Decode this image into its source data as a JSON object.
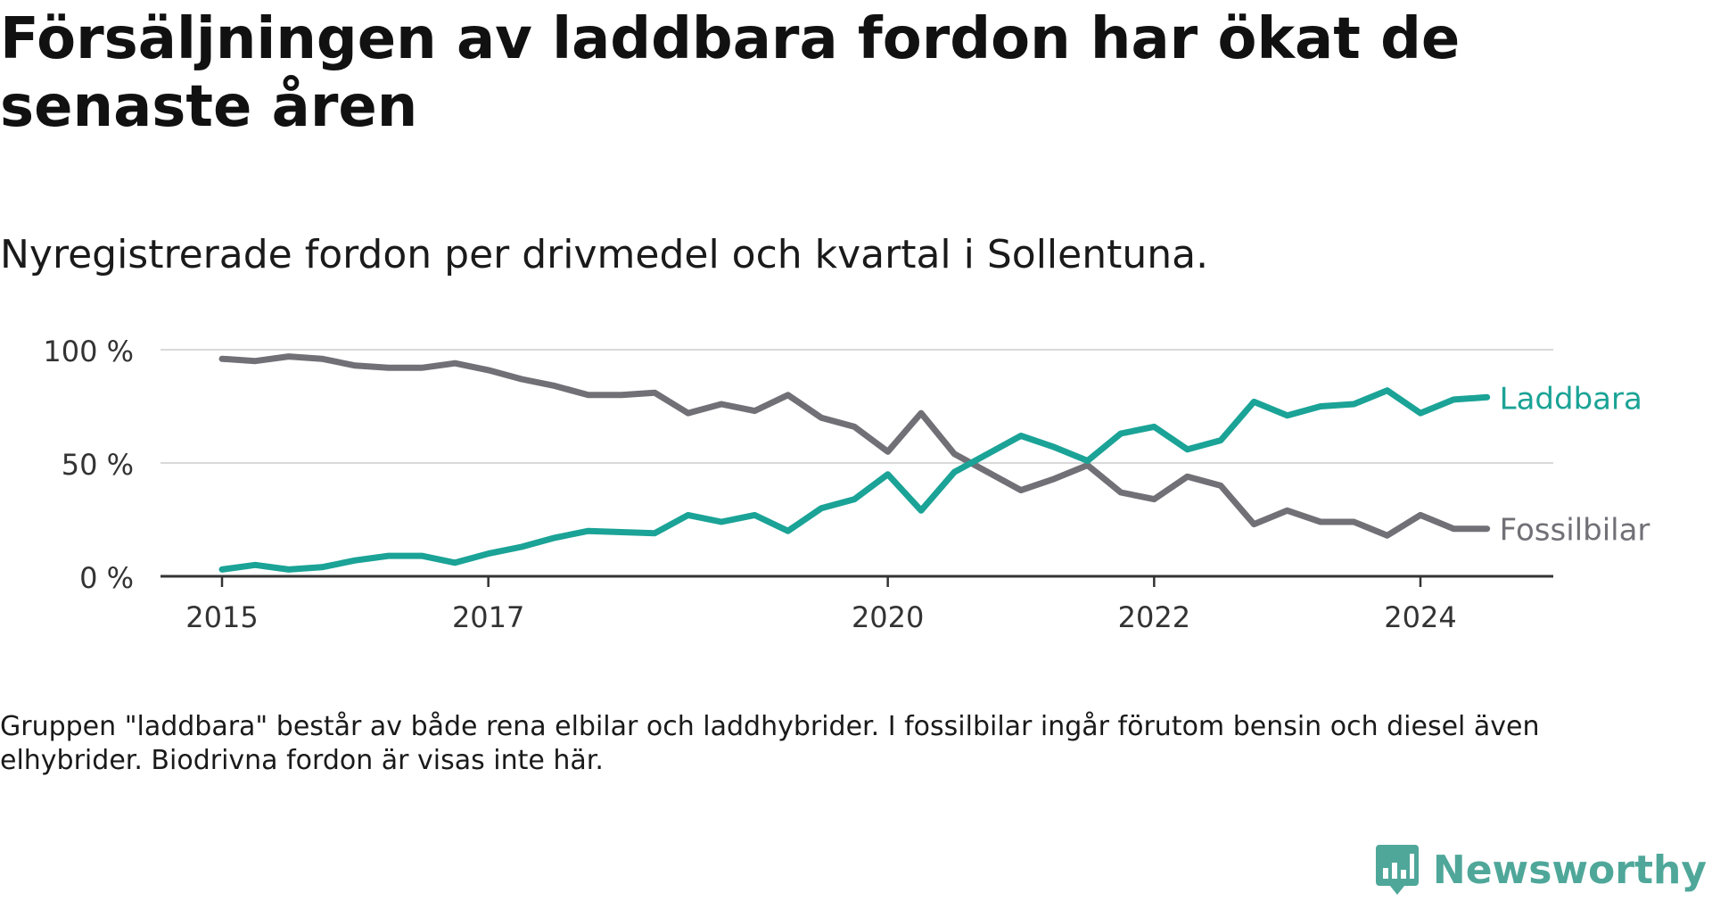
{
  "title": "Försäljningen av laddbara fordon har ökat de senaste åren",
  "subtitle": "Nyregistrerade fordon per drivmedel och kvartal i Sollentuna.",
  "footnote": "Gruppen \"laddbara\" består av både rena elbilar och laddhybrider. I fossilbilar ingår förutom bensin och diesel även elhybrider. Biodrivna fordon är visas inte här.",
  "brand": {
    "name": "Newsworthy",
    "icon": "newsworthy-logo-icon",
    "color": "#4fa79a"
  },
  "chart_data": {
    "type": "line",
    "title": "Försäljningen av laddbara fordon har ökat de senaste åren",
    "xlabel": "",
    "ylabel": "",
    "xlim": [
      2014.75,
      2025.25
    ],
    "ylim": [
      0,
      100
    ],
    "grid": true,
    "x_ticks": [
      {
        "value": 2015,
        "label": "2015"
      },
      {
        "value": 2017,
        "label": "2017"
      },
      {
        "value": 2020,
        "label": "2020"
      },
      {
        "value": 2022,
        "label": "2022"
      },
      {
        "value": 2024,
        "label": "2024"
      }
    ],
    "y_ticks": [
      {
        "value": 0,
        "label": "0 %"
      },
      {
        "value": 50,
        "label": "50 %"
      },
      {
        "value": 100,
        "label": "100 %"
      }
    ],
    "x": [
      2015.0,
      2015.25,
      2015.5,
      2015.75,
      2016.0,
      2016.25,
      2016.5,
      2016.75,
      2017.0,
      2017.25,
      2017.5,
      2017.75,
      2018.0,
      2018.25,
      2018.5,
      2018.75,
      2019.0,
      2019.25,
      2019.5,
      2019.75,
      2020.0,
      2020.25,
      2020.5,
      2020.75,
      2021.0,
      2021.25,
      2021.5,
      2021.75,
      2022.0,
      2022.25,
      2022.5,
      2022.75,
      2023.0,
      2023.25,
      2023.5,
      2023.75,
      2024.0,
      2024.25,
      2024.5
    ],
    "series": [
      {
        "name": "Laddbara",
        "color": "#1aa396",
        "values": [
          3,
          5,
          3,
          4,
          7,
          9,
          9,
          6,
          10,
          13,
          17,
          20,
          19.5,
          19,
          27,
          24,
          27,
          20,
          30,
          34,
          45,
          29,
          46,
          54,
          62,
          57,
          51,
          63,
          66,
          56,
          60,
          77,
          71,
          75,
          76,
          82,
          72,
          78,
          79
        ]
      },
      {
        "name": "Fossilbilar",
        "color": "#707076",
        "values": [
          96,
          95,
          97,
          96,
          93,
          92,
          92,
          94,
          91,
          87,
          84,
          80,
          80,
          81,
          72,
          76,
          73,
          80,
          70,
          66,
          55,
          72,
          54,
          46,
          38,
          43,
          49,
          37,
          34,
          44,
          40,
          23,
          29,
          24,
          24,
          18,
          27,
          21,
          21
        ]
      }
    ]
  }
}
